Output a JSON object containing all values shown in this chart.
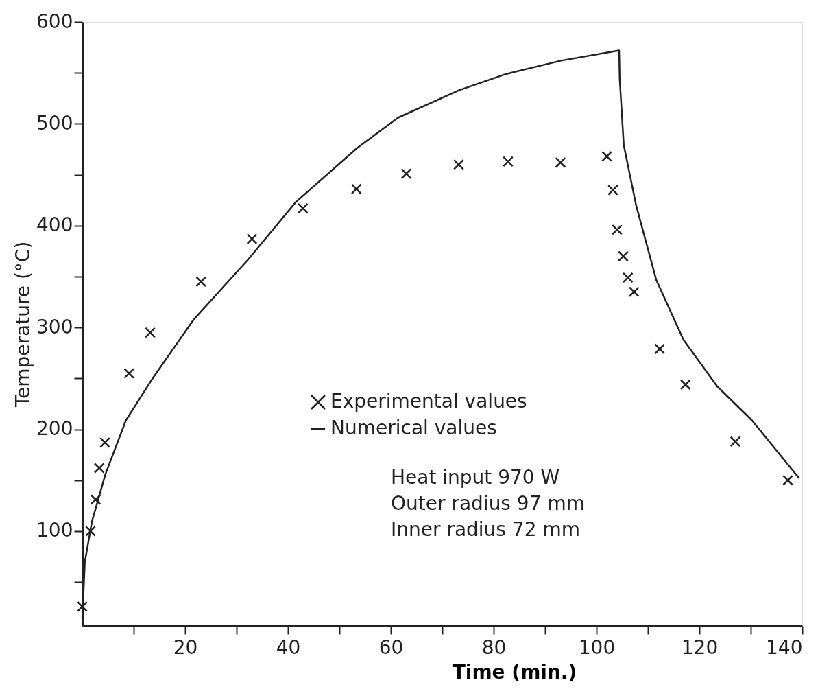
{
  "chart_data": {
    "type": "scatter",
    "xlabel": "Time    (min.)",
    "ylabel": "Temperature   (°C)",
    "xlim": [
      0,
      140
    ],
    "ylim": [
      7,
      600
    ],
    "xticks": [
      {
        "value": 10,
        "label": null
      },
      20,
      {
        "value": 30,
        "label": null
      },
      40,
      {
        "value": 50,
        "label": null
      },
      60,
      {
        "value": 70,
        "label": null
      },
      80,
      {
        "value": 90,
        "label": null
      },
      100,
      {
        "value": 110,
        "label": null
      },
      120,
      {
        "value": 130,
        "label": null
      },
      140
    ],
    "yticks": [
      {
        "value": 50,
        "label": null
      },
      100,
      {
        "value": 150,
        "label": null
      },
      200,
      {
        "value": 250,
        "label": null
      },
      300,
      {
        "value": 350,
        "label": null
      },
      400,
      {
        "value": 450,
        "label": null
      },
      500,
      {
        "value": 550,
        "label": null
      },
      600
    ],
    "grid": false,
    "legend": "right",
    "series": [
      {
        "name": "Experimental values",
        "marker": "cross",
        "color": "#222222",
        "x": [
          0,
          1.6,
          2.6,
          3.3,
          4.4,
          9.1,
          13.2,
          23.1,
          33,
          42.9,
          53.3,
          63,
          73.2,
          82.8,
          93,
          102,
          103.2,
          104,
          105.2,
          106.1,
          107.3,
          112.3,
          117.3,
          127,
          137.2
        ],
        "values": [
          26,
          100,
          131,
          162,
          187,
          255,
          295,
          345,
          387,
          417,
          436,
          451,
          460,
          463,
          462,
          468,
          435,
          396,
          370,
          349,
          335,
          279,
          244,
          188,
          150
        ]
      },
      {
        "name": "Numerical values",
        "type": "line",
        "line_style": "solid",
        "color": "#222222",
        "x": [
          0,
          0.5,
          1.9,
          4.5,
          8.5,
          13.8,
          21.7,
          32.3,
          41.5,
          53.4,
          61.4,
          73.3,
          82.5,
          93.1,
          104.4,
          104.5,
          105.3,
          107.7,
          111.6,
          116.9,
          123.5,
          130.2,
          139.4
        ],
        "values": [
          14,
          70,
          110,
          156,
          209,
          251,
          308,
          367,
          423,
          476,
          506,
          533,
          549,
          562,
          572,
          545,
          479,
          420,
          347,
          288,
          242,
          209,
          152
        ]
      }
    ],
    "annotations": [
      "Heat  input     970  W",
      "Outer  radius    97  mm",
      "Inner  radius    72  mm"
    ]
  }
}
